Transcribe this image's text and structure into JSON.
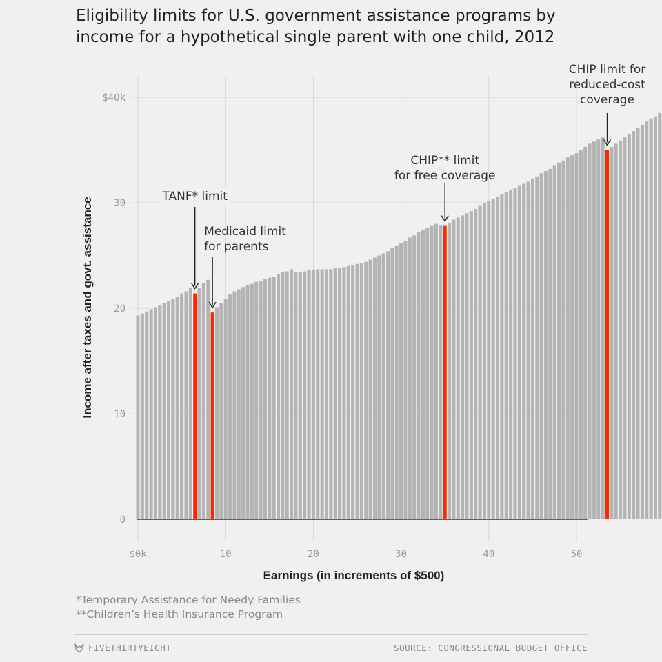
{
  "title": {
    "line1": "Eligibility limits for U.S. government assistance programs by",
    "line2": "income for a hypothetical single parent with one child, 2012"
  },
  "footnotes": {
    "tanf": "*Temporary Assistance for Needy Families",
    "chip": "**Children’s Health Insurance Program"
  },
  "footer": {
    "brand": "FIVETHIRTYEIGHT",
    "source": "SOURCE: CONGRESSIONAL BUDGET OFFICE"
  },
  "colors": {
    "bar": "#b4b4b4",
    "highlight": "#ff2700",
    "grid": "#d6d6d6",
    "axis": "#333333",
    "tick_label": "#999999"
  },
  "chart_data": {
    "type": "bar",
    "xlabel": "Earnings (in increments of $500)",
    "ylabel": "Income after taxes and govt. assistance",
    "xlim": [
      0,
      50
    ],
    "ylim": [
      0,
      40
    ],
    "x_ticks": [
      0,
      10,
      20,
      30,
      40,
      50
    ],
    "x_tick_labels": [
      "$0k",
      "10",
      "20",
      "30",
      "40",
      "50"
    ],
    "y_ticks": [
      0,
      10,
      20,
      30,
      40
    ],
    "y_tick_labels": [
      "0",
      "10",
      "20",
      "30",
      "$40k"
    ],
    "grid": true,
    "bar_step": 0.5,
    "values": [
      19.3,
      19.5,
      19.7,
      19.9,
      20.1,
      20.3,
      20.5,
      20.7,
      20.9,
      21.1,
      21.4,
      21.6,
      21.9,
      21.4,
      21.9,
      22.4,
      22.7,
      19.6,
      20.1,
      20.5,
      20.9,
      21.3,
      21.6,
      21.8,
      22.0,
      22.2,
      22.3,
      22.5,
      22.6,
      22.8,
      22.9,
      23.0,
      23.2,
      23.4,
      23.5,
      23.7,
      23.4,
      23.4,
      23.5,
      23.6,
      23.6,
      23.7,
      23.7,
      23.7,
      23.7,
      23.8,
      23.8,
      23.9,
      24.0,
      24.1,
      24.2,
      24.3,
      24.4,
      24.6,
      24.8,
      25.0,
      25.2,
      25.4,
      25.7,
      25.9,
      26.2,
      26.4,
      26.7,
      26.9,
      27.2,
      27.4,
      27.6,
      27.8,
      28.0,
      27.9,
      27.8,
      28.1,
      28.4,
      28.6,
      28.8,
      29.0,
      29.2,
      29.4,
      29.7,
      30.0,
      30.2,
      30.4,
      30.6,
      30.8,
      31.0,
      31.2,
      31.4,
      31.6,
      31.8,
      32.0,
      32.3,
      32.5,
      32.8,
      33.0,
      33.2,
      33.5,
      33.8,
      34.0,
      34.3,
      34.5,
      34.7,
      35.0,
      35.3,
      35.6,
      35.8,
      36.0,
      36.2,
      35.0,
      35.3,
      35.6,
      35.9,
      36.2,
      36.5,
      36.8,
      37.1,
      37.4,
      37.7,
      38.0,
      38.2,
      38.5,
      38.8
    ],
    "highlight_indices": [
      13,
      17,
      70,
      107
    ],
    "annotations": [
      {
        "lines": [
          "TANF* limit"
        ],
        "bar_index": 13
      },
      {
        "lines": [
          "Medicaid limit",
          "for parents"
        ],
        "bar_index": 17
      },
      {
        "lines": [
          "CHIP** limit",
          "for free coverage"
        ],
        "bar_index": 70
      },
      {
        "lines": [
          "CHIP limit for",
          "reduced-cost",
          "coverage"
        ],
        "bar_index": 107
      }
    ]
  }
}
